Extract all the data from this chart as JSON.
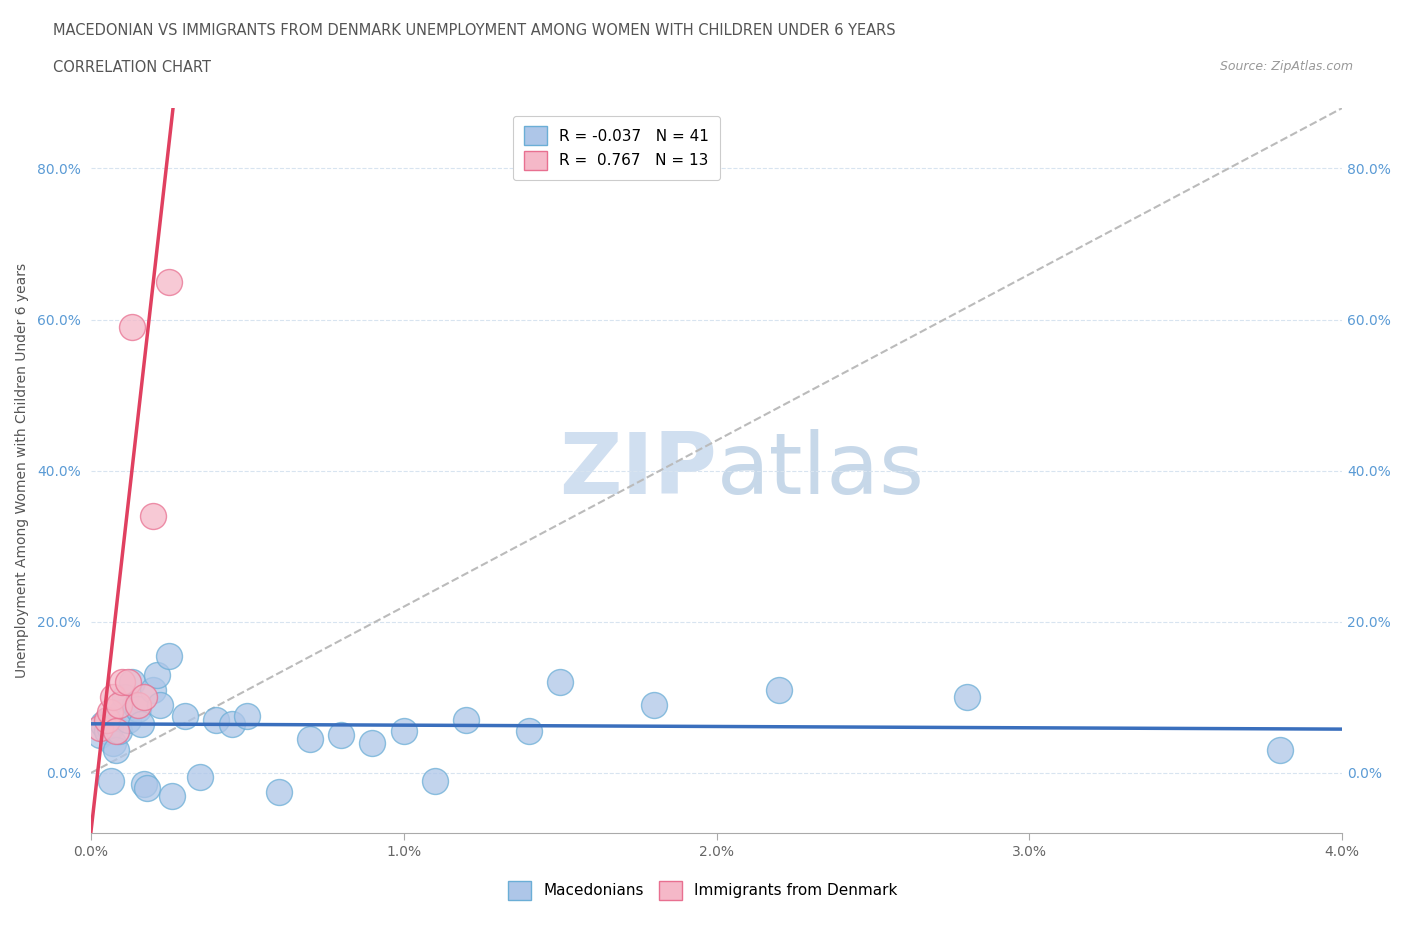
{
  "title_line1": "MACEDONIAN VS IMMIGRANTS FROM DENMARK UNEMPLOYMENT AMONG WOMEN WITH CHILDREN UNDER 6 YEARS",
  "title_line2": "CORRELATION CHART",
  "source_text": "Source: ZipAtlas.com",
  "ylabel": "Unemployment Among Women with Children Under 6 years",
  "xlim": [
    0.0,
    0.04
  ],
  "ylim": [
    -0.08,
    0.88
  ],
  "xticks": [
    0.0,
    0.01,
    0.02,
    0.03,
    0.04
  ],
  "xtick_labels": [
    "0.0%",
    "1.0%",
    "2.0%",
    "3.0%",
    "4.0%"
  ],
  "yticks": [
    0.0,
    0.2,
    0.4,
    0.6,
    0.8
  ],
  "ytick_labels": [
    "0.0%",
    "20.0%",
    "40.0%",
    "60.0%",
    "80.0%"
  ],
  "macedonians_x": [
    0.0003,
    0.0004,
    0.0005,
    0.00055,
    0.0006,
    0.00065,
    0.0007,
    0.0008,
    0.0009,
    0.001,
    0.0011,
    0.0012,
    0.0013,
    0.0014,
    0.0015,
    0.0016,
    0.0017,
    0.0018,
    0.002,
    0.0021,
    0.0022,
    0.0025,
    0.0026,
    0.003,
    0.0035,
    0.004,
    0.0045,
    0.005,
    0.006,
    0.007,
    0.008,
    0.009,
    0.01,
    0.011,
    0.012,
    0.014,
    0.015,
    0.018,
    0.022,
    0.028,
    0.038
  ],
  "macedonians_y": [
    0.05,
    0.065,
    0.055,
    0.07,
    0.06,
    -0.01,
    0.04,
    0.03,
    0.055,
    0.08,
    0.1,
    0.07,
    0.12,
    0.09,
    0.085,
    0.065,
    -0.015,
    -0.02,
    0.11,
    0.13,
    0.09,
    0.155,
    -0.03,
    0.075,
    -0.005,
    0.07,
    0.065,
    0.075,
    -0.025,
    0.045,
    0.05,
    0.04,
    0.055,
    -0.01,
    0.07,
    0.055,
    0.12,
    0.09,
    0.11,
    0.1,
    0.03
  ],
  "denmark_x": [
    0.0003,
    0.0005,
    0.0006,
    0.0007,
    0.0008,
    0.0009,
    0.001,
    0.0012,
    0.0013,
    0.0015,
    0.0017,
    0.002,
    0.0025
  ],
  "denmark_y": [
    0.06,
    0.07,
    0.08,
    0.1,
    0.055,
    0.09,
    0.12,
    0.12,
    0.59,
    0.09,
    0.1,
    0.34,
    0.65
  ],
  "blue_color": "#aec6e8",
  "pink_color": "#f5b8c8",
  "blue_dot_edge": "#6baed6",
  "pink_dot_edge": "#e87090",
  "trend_blue": "#3a6fbd",
  "trend_pink": "#e04060",
  "ref_line_color": "#bbbbbb",
  "watermark_color": "#d0dff0",
  "background_color": "#ffffff",
  "grid_color": "#d8e4f0",
  "title_color": "#555555",
  "source_color": "#999999",
  "ytick_color": "#5b9bd5",
  "xtick_color": "#666666"
}
